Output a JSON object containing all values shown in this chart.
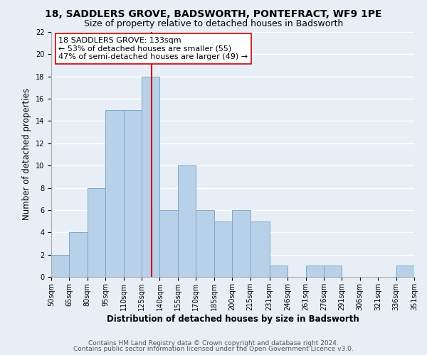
{
  "title": "18, SADDLERS GROVE, BADSWORTH, PONTEFRACT, WF9 1PE",
  "subtitle": "Size of property relative to detached houses in Badsworth",
  "xlabel": "Distribution of detached houses by size in Badsworth",
  "ylabel": "Number of detached properties",
  "bin_edges": [
    50,
    65,
    80,
    95,
    110,
    125,
    140,
    155,
    170,
    185,
    200,
    215,
    231,
    246,
    261,
    276,
    291,
    306,
    321,
    336,
    351
  ],
  "bin_labels": [
    "50sqm",
    "65sqm",
    "80sqm",
    "95sqm",
    "110sqm",
    "125sqm",
    "140sqm",
    "155sqm",
    "170sqm",
    "185sqm",
    "200sqm",
    "215sqm",
    "231sqm",
    "246sqm",
    "261sqm",
    "276sqm",
    "291sqm",
    "306sqm",
    "321sqm",
    "336sqm",
    "351sqm"
  ],
  "counts": [
    2,
    4,
    8,
    15,
    15,
    18,
    6,
    10,
    6,
    5,
    6,
    5,
    1,
    0,
    1,
    1,
    0,
    0,
    0,
    1
  ],
  "bar_color": "#b8d0e8",
  "bar_edge_color": "#7aaac8",
  "property_size": 133,
  "vline_color": "#cc0000",
  "ylim": [
    0,
    22
  ],
  "annotation_line1": "18 SADDLERS GROVE: 133sqm",
  "annotation_line2": "← 53% of detached houses are smaller (55)",
  "annotation_line3": "47% of semi-detached houses are larger (49) →",
  "annotation_box_color": "white",
  "annotation_box_edge_color": "#cc0000",
  "footer_line1": "Contains HM Land Registry data © Crown copyright and database right 2024.",
  "footer_line2": "Contains public sector information licensed under the Open Government Licence v3.0.",
  "background_color": "#e8eef6",
  "grid_color": "white",
  "title_fontsize": 10,
  "subtitle_fontsize": 9,
  "axis_label_fontsize": 8.5,
  "tick_fontsize": 7,
  "annotation_fontsize": 8,
  "footer_fontsize": 6.5
}
